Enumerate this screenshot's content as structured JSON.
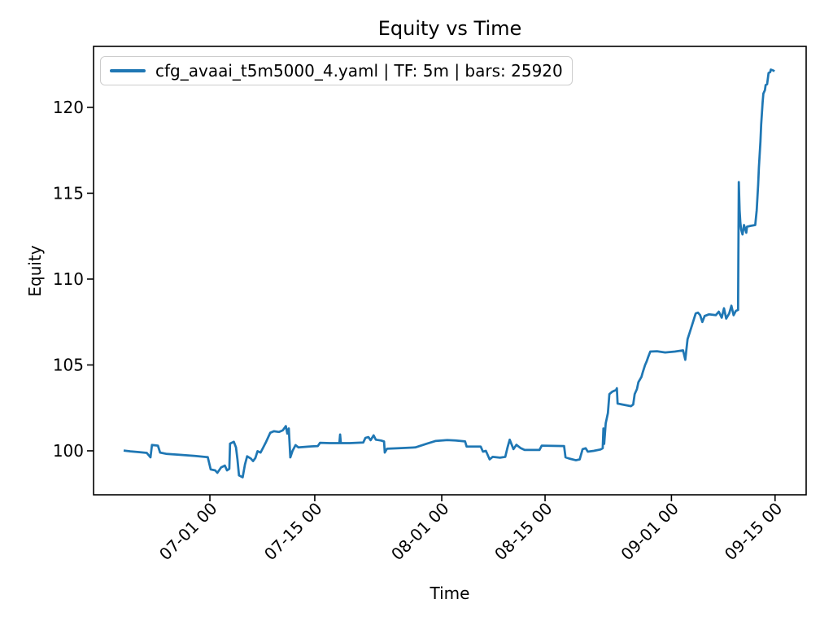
{
  "title": "Equity vs Time",
  "axis_labels": {
    "x": "Time",
    "y": "Equity"
  },
  "legend": {
    "entries": [
      {
        "label": "cfg_avaai_t5m5000_4.yaml | TF: 5m | bars: 25920",
        "color": "#1f77b4"
      }
    ],
    "position": "upper left"
  },
  "colors": {
    "line": "#1f77b4",
    "axes": "#000000",
    "legend_border": "#cccccc",
    "background": "#ffffff"
  },
  "chart_data": {
    "type": "line",
    "title": "Equity vs Time",
    "xlabel": "Time",
    "ylabel": "Equity",
    "grid": false,
    "legend_position": "upper left",
    "x_unit": "days since start of equity curve (mid-June); tick labels are 'MM-DD HH' dates",
    "xlim": [
      -4.05,
      91.75
    ],
    "ylim": [
      97.44,
      123.55
    ],
    "x_ticks": [
      {
        "pos": 11.59,
        "label": "07-01 00"
      },
      {
        "pos": 25.69,
        "label": "07-15 00"
      },
      {
        "pos": 42.76,
        "label": "08-01 00"
      },
      {
        "pos": 56.65,
        "label": "08-15 00"
      },
      {
        "pos": 73.64,
        "label": "09-01 00"
      },
      {
        "pos": 87.57,
        "label": "09-15 00"
      }
    ],
    "y_ticks": [
      100,
      105,
      110,
      115,
      120
    ],
    "series": [
      {
        "name": "cfg_avaai_t5m5000_4.yaml | TF: 5m | bars: 25920",
        "color": "#1f77b4",
        "points": [
          [
            0.0,
            100.02
          ],
          [
            0.9,
            99.97
          ],
          [
            2.0,
            99.93
          ],
          [
            3.1,
            99.88
          ],
          [
            3.6,
            99.62
          ],
          [
            3.8,
            100.34
          ],
          [
            4.6,
            100.3
          ],
          [
            4.9,
            99.9
          ],
          [
            5.8,
            99.82
          ],
          [
            7.4,
            99.77
          ],
          [
            9.6,
            99.7
          ],
          [
            11.3,
            99.63
          ],
          [
            11.7,
            98.92
          ],
          [
            12.3,
            98.86
          ],
          [
            12.6,
            98.72
          ],
          [
            13.1,
            99.03
          ],
          [
            13.6,
            99.14
          ],
          [
            13.9,
            98.86
          ],
          [
            14.2,
            98.95
          ],
          [
            14.3,
            100.42
          ],
          [
            14.8,
            100.53
          ],
          [
            15.1,
            100.2
          ],
          [
            15.3,
            99.5
          ],
          [
            15.5,
            98.57
          ],
          [
            16.0,
            98.46
          ],
          [
            16.3,
            99.2
          ],
          [
            16.6,
            99.68
          ],
          [
            17.1,
            99.55
          ],
          [
            17.4,
            99.4
          ],
          [
            17.7,
            99.58
          ],
          [
            18.0,
            99.98
          ],
          [
            18.4,
            99.9
          ],
          [
            18.7,
            100.14
          ],
          [
            19.1,
            100.48
          ],
          [
            19.7,
            101.05
          ],
          [
            20.2,
            101.14
          ],
          [
            20.9,
            101.1
          ],
          [
            21.4,
            101.2
          ],
          [
            21.8,
            101.44
          ],
          [
            22.0,
            101.0
          ],
          [
            22.2,
            101.3
          ],
          [
            22.4,
            99.62
          ],
          [
            22.7,
            100.0
          ],
          [
            23.1,
            100.33
          ],
          [
            23.5,
            100.2
          ],
          [
            24.9,
            100.25
          ],
          [
            26.1,
            100.28
          ],
          [
            26.4,
            100.47
          ],
          [
            27.7,
            100.45
          ],
          [
            29.0,
            100.45
          ],
          [
            29.1,
            100.95
          ],
          [
            29.2,
            100.45
          ],
          [
            30.4,
            100.45
          ],
          [
            32.2,
            100.48
          ],
          [
            32.5,
            100.75
          ],
          [
            32.9,
            100.8
          ],
          [
            33.2,
            100.62
          ],
          [
            33.6,
            100.9
          ],
          [
            33.9,
            100.65
          ],
          [
            34.6,
            100.6
          ],
          [
            35.0,
            100.55
          ],
          [
            35.1,
            99.9
          ],
          [
            35.4,
            100.12
          ],
          [
            37.0,
            100.15
          ],
          [
            39.2,
            100.2
          ],
          [
            40.8,
            100.42
          ],
          [
            41.9,
            100.57
          ],
          [
            43.5,
            100.63
          ],
          [
            44.6,
            100.6
          ],
          [
            45.9,
            100.55
          ],
          [
            46.1,
            100.25
          ],
          [
            48.0,
            100.25
          ],
          [
            48.3,
            99.95
          ],
          [
            48.7,
            100.0
          ],
          [
            49.2,
            99.5
          ],
          [
            49.6,
            99.65
          ],
          [
            50.6,
            99.6
          ],
          [
            51.3,
            99.65
          ],
          [
            51.6,
            100.2
          ],
          [
            51.9,
            100.65
          ],
          [
            52.4,
            100.1
          ],
          [
            52.8,
            100.35
          ],
          [
            53.4,
            100.15
          ],
          [
            53.9,
            100.05
          ],
          [
            55.9,
            100.05
          ],
          [
            56.2,
            100.3
          ],
          [
            59.2,
            100.28
          ],
          [
            59.4,
            99.62
          ],
          [
            59.9,
            99.55
          ],
          [
            60.8,
            99.45
          ],
          [
            61.3,
            99.5
          ],
          [
            61.7,
            100.1
          ],
          [
            62.1,
            100.15
          ],
          [
            62.4,
            99.95
          ],
          [
            63.2,
            100.0
          ],
          [
            64.1,
            100.08
          ],
          [
            64.4,
            100.15
          ],
          [
            64.5,
            101.3
          ],
          [
            64.6,
            100.4
          ],
          [
            64.8,
            101.6
          ],
          [
            65.1,
            102.2
          ],
          [
            65.3,
            103.3
          ],
          [
            65.7,
            103.45
          ],
          [
            66.2,
            103.55
          ],
          [
            66.3,
            103.65
          ],
          [
            66.4,
            102.75
          ],
          [
            67.0,
            102.7
          ],
          [
            68.2,
            102.6
          ],
          [
            68.5,
            102.7
          ],
          [
            68.7,
            103.3
          ],
          [
            69.0,
            103.6
          ],
          [
            69.2,
            104.0
          ],
          [
            69.6,
            104.3
          ],
          [
            69.8,
            104.6
          ],
          [
            70.1,
            105.0
          ],
          [
            70.3,
            105.2
          ],
          [
            70.5,
            105.45
          ],
          [
            70.8,
            105.78
          ],
          [
            71.7,
            105.8
          ],
          [
            72.8,
            105.73
          ],
          [
            74.1,
            105.78
          ],
          [
            75.2,
            105.85
          ],
          [
            75.5,
            105.3
          ],
          [
            75.8,
            106.5
          ],
          [
            76.1,
            106.9
          ],
          [
            76.4,
            107.3
          ],
          [
            76.9,
            108.0
          ],
          [
            77.2,
            108.05
          ],
          [
            77.5,
            107.9
          ],
          [
            77.8,
            107.5
          ],
          [
            78.1,
            107.85
          ],
          [
            78.7,
            107.95
          ],
          [
            79.6,
            107.9
          ],
          [
            80.0,
            108.1
          ],
          [
            80.4,
            107.75
          ],
          [
            80.7,
            108.3
          ],
          [
            81.0,
            107.7
          ],
          [
            81.4,
            108.0
          ],
          [
            81.7,
            108.45
          ],
          [
            82.0,
            107.9
          ],
          [
            82.3,
            108.15
          ],
          [
            82.6,
            108.2
          ],
          [
            82.7,
            115.65
          ],
          [
            82.8,
            114.0
          ],
          [
            82.9,
            113.3
          ],
          [
            83.0,
            112.9
          ],
          [
            83.2,
            112.6
          ],
          [
            83.4,
            113.15
          ],
          [
            83.7,
            112.7
          ],
          [
            83.8,
            113.05
          ],
          [
            84.3,
            113.1
          ],
          [
            84.9,
            113.15
          ],
          [
            85.1,
            114.0
          ],
          [
            85.3,
            115.5
          ],
          [
            85.4,
            116.5
          ],
          [
            85.6,
            118.0
          ],
          [
            85.7,
            119.0
          ],
          [
            85.9,
            120.3
          ],
          [
            86.0,
            120.8
          ],
          [
            86.2,
            121.0
          ],
          [
            86.3,
            121.3
          ],
          [
            86.5,
            121.35
          ],
          [
            86.7,
            122.0
          ],
          [
            86.9,
            122.05
          ],
          [
            87.0,
            122.2
          ],
          [
            87.3,
            122.15
          ],
          [
            87.5,
            122.1
          ]
        ]
      }
    ]
  }
}
